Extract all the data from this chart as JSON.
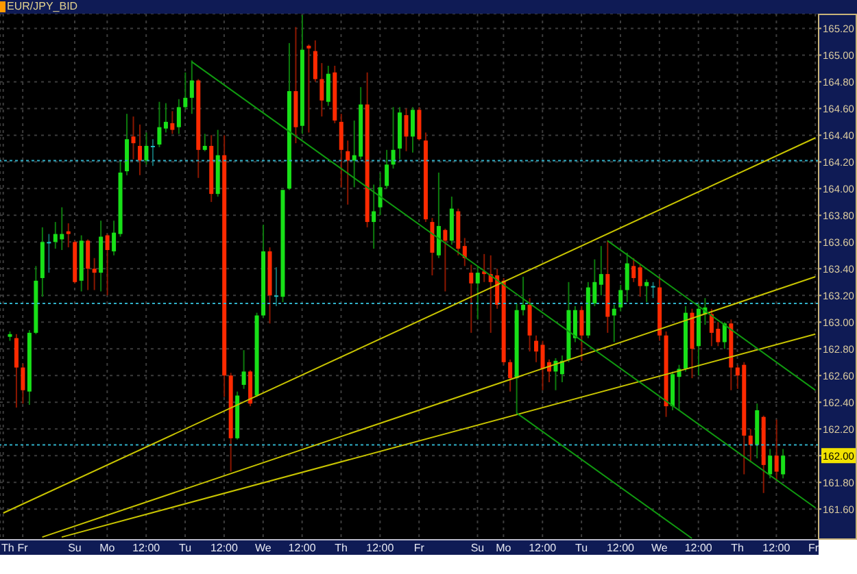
{
  "chart_data": {
    "type": "candlestick",
    "title": "EUR/JPY_BID",
    "categories": [
      "Th",
      null,
      null,
      "Fr",
      null,
      null,
      null,
      null,
      null,
      null,
      null,
      "Su",
      null,
      null,
      null,
      null,
      "Mo",
      null,
      null,
      null,
      null,
      null,
      "12:00",
      null,
      null,
      null,
      null,
      null,
      "Tu",
      null,
      null,
      null,
      null,
      null,
      "12:00",
      null,
      null,
      null,
      null,
      null,
      "We",
      null,
      null,
      null,
      null,
      null,
      "12:00",
      null,
      null,
      null,
      null,
      null,
      "Th",
      null,
      null,
      null,
      null,
      null,
      "12:00",
      null,
      null,
      null,
      null,
      null,
      "Fr",
      null,
      null,
      null,
      null,
      null,
      null,
      null,
      null,
      "Su",
      null,
      null,
      null,
      "Mo",
      null,
      null,
      null,
      null,
      null,
      "12:00",
      null,
      null,
      null,
      null,
      null,
      "Tu",
      null,
      null,
      null,
      null,
      null,
      "12:00",
      null,
      null,
      null,
      null,
      null,
      "We",
      null,
      null,
      null,
      null,
      null,
      "12:00",
      null,
      null,
      null,
      null,
      null,
      "Th",
      null,
      null,
      null,
      null,
      null,
      "12:00",
      null,
      null,
      null,
      null,
      null,
      "Fr"
    ],
    "ohlc": [
      null,
      [
        162.89,
        162.93,
        162.86,
        162.91
      ],
      [
        162.88,
        162.91,
        162.36,
        162.66
      ],
      [
        162.66,
        162.69,
        162.39,
        162.49
      ],
      [
        162.48,
        162.94,
        162.38,
        162.92
      ],
      [
        162.92,
        163.42,
        162.91,
        163.31
      ],
      [
        163.33,
        163.71,
        163.19,
        163.6
      ],
      [
        163.6,
        163.66,
        163.37,
        163.6
      ],
      [
        163.6,
        163.75,
        163.55,
        163.66
      ],
      [
        163.62,
        163.86,
        163.54,
        163.66
      ],
      [
        163.68,
        163.74,
        163.56,
        163.66
      ],
      [
        163.6,
        163.61,
        163.29,
        163.3
      ],
      [
        163.31,
        163.65,
        163.23,
        163.61
      ],
      [
        163.61,
        163.62,
        163.24,
        163.4
      ],
      [
        163.4,
        163.48,
        163.24,
        163.37
      ],
      [
        163.37,
        163.76,
        163.23,
        163.64
      ],
      [
        163.65,
        163.66,
        163.2,
        163.54
      ],
      [
        163.53,
        163.76,
        163.5,
        163.67
      ],
      [
        163.66,
        164.21,
        163.64,
        164.12
      ],
      [
        164.13,
        164.56,
        164.1,
        164.37
      ],
      [
        164.39,
        164.54,
        164.22,
        164.34
      ],
      [
        164.32,
        164.48,
        164.1,
        164.21
      ],
      [
        164.21,
        164.42,
        164.18,
        164.32
      ],
      [
        164.32,
        164.37,
        164.17,
        164.32
      ],
      [
        164.33,
        164.65,
        164.31,
        164.46
      ],
      [
        164.45,
        164.64,
        164.42,
        164.5
      ],
      [
        164.49,
        164.58,
        164.41,
        164.44
      ],
      [
        164.46,
        164.67,
        164.41,
        164.61
      ],
      [
        164.61,
        164.87,
        164.59,
        164.68
      ],
      [
        164.68,
        164.96,
        164.56,
        164.81
      ],
      [
        164.81,
        164.82,
        164.08,
        164.29
      ],
      [
        164.29,
        164.41,
        164.28,
        164.32
      ],
      [
        164.32,
        164.4,
        163.9,
        163.96
      ],
      [
        163.96,
        164.44,
        163.94,
        164.25
      ],
      [
        164.25,
        164.4,
        162.44,
        162.6
      ],
      [
        162.6,
        162.62,
        161.88,
        162.13
      ],
      [
        162.13,
        162.48,
        162.12,
        162.45
      ],
      [
        162.53,
        162.79,
        162.5,
        162.63
      ],
      [
        162.63,
        162.64,
        162.37,
        162.39
      ],
      [
        162.45,
        163.07,
        162.44,
        163.05
      ],
      [
        163.05,
        163.73,
        163.03,
        163.53
      ],
      [
        163.53,
        163.56,
        162.99,
        163.2
      ],
      [
        163.2,
        163.41,
        163.12,
        163.2
      ],
      [
        163.19,
        163.99,
        163.15,
        163.99
      ],
      [
        164.0,
        165.09,
        163.99,
        164.73
      ],
      [
        164.73,
        165.21,
        164.34,
        164.46
      ],
      [
        164.47,
        165.3,
        164.41,
        165.04
      ],
      [
        165.07,
        165.08,
        164.42,
        165.05
      ],
      [
        165.03,
        165.11,
        164.8,
        164.82
      ],
      [
        164.82,
        164.94,
        164.54,
        164.66
      ],
      [
        164.65,
        164.92,
        164.62,
        164.86
      ],
      [
        164.87,
        164.92,
        164.49,
        164.51
      ],
      [
        164.5,
        164.56,
        164.01,
        164.29
      ],
      [
        164.28,
        164.36,
        163.88,
        164.21
      ],
      [
        164.21,
        164.51,
        164.01,
        164.25
      ],
      [
        164.24,
        164.76,
        164.22,
        164.63
      ],
      [
        164.63,
        164.87,
        163.71,
        163.75
      ],
      [
        163.75,
        164.03,
        163.55,
        163.83
      ],
      [
        163.86,
        164.12,
        163.8,
        164.01
      ],
      [
        164.02,
        164.29,
        164.0,
        164.18
      ],
      [
        164.18,
        164.61,
        164.15,
        164.29
      ],
      [
        164.3,
        164.61,
        164.22,
        164.57
      ],
      [
        164.55,
        164.6,
        164.28,
        164.39
      ],
      [
        164.39,
        164.61,
        164.27,
        164.59
      ],
      [
        164.59,
        164.61,
        164.36,
        164.37
      ],
      [
        164.36,
        164.42,
        163.75,
        163.77
      ],
      [
        163.75,
        163.78,
        163.35,
        163.52
      ],
      [
        163.5,
        164.12,
        163.48,
        163.72
      ],
      [
        163.69,
        163.7,
        163.23,
        163.61
      ],
      [
        163.61,
        163.94,
        163.58,
        163.85
      ],
      [
        163.83,
        163.85,
        163.5,
        163.55
      ],
      [
        163.57,
        163.63,
        163.42,
        163.48
      ],
      [
        163.37,
        163.43,
        162.92,
        163.29
      ],
      [
        163.29,
        163.42,
        163.02,
        163.37
      ],
      [
        163.38,
        163.51,
        163.3,
        163.36
      ],
      [
        163.36,
        163.5,
        162.92,
        163.3
      ],
      [
        163.35,
        163.4,
        163.1,
        163.13
      ],
      [
        163.31,
        163.33,
        162.68,
        162.7
      ],
      [
        162.7,
        162.72,
        162.48,
        162.58
      ],
      [
        162.58,
        163.14,
        162.32,
        163.09
      ],
      [
        163.09,
        163.34,
        163.05,
        163.13
      ],
      [
        163.13,
        163.18,
        162.78,
        162.9
      ],
      [
        162.86,
        162.9,
        162.7,
        162.78
      ],
      [
        162.83,
        162.86,
        162.49,
        162.65
      ],
      [
        162.7,
        162.72,
        162.55,
        162.63
      ],
      [
        162.63,
        162.73,
        162.49,
        162.71
      ],
      [
        162.61,
        162.75,
        162.55,
        162.71
      ],
      [
        162.72,
        163.3,
        162.7,
        163.09
      ],
      [
        162.88,
        163.12,
        162.85,
        163.09
      ],
      [
        163.09,
        163.12,
        162.71,
        162.9
      ],
      [
        162.9,
        163.3,
        162.88,
        163.26
      ],
      [
        163.14,
        163.47,
        163.12,
        163.3
      ],
      [
        163.28,
        163.57,
        163.2,
        163.36
      ],
      [
        163.36,
        163.61,
        162.92,
        163.04
      ],
      [
        163.05,
        163.13,
        162.85,
        163.1
      ],
      [
        163.11,
        163.28,
        163.08,
        163.24
      ],
      [
        163.24,
        163.52,
        163.15,
        163.44
      ],
      [
        163.42,
        163.48,
        163.3,
        163.33
      ],
      [
        163.41,
        163.43,
        163.19,
        163.27
      ],
      [
        163.27,
        163.32,
        163.15,
        163.3
      ],
      [
        163.27,
        163.3,
        163.18,
        163.27
      ],
      [
        163.26,
        163.34,
        162.86,
        162.9
      ],
      [
        162.9,
        162.93,
        162.29,
        162.37
      ],
      [
        162.37,
        162.63,
        162.34,
        162.61
      ],
      [
        162.59,
        162.68,
        162.34,
        162.65
      ],
      [
        162.65,
        163.12,
        162.63,
        163.07
      ],
      [
        163.07,
        163.1,
        162.58,
        162.8
      ],
      [
        162.82,
        163.14,
        162.6,
        163.1
      ],
      [
        163.06,
        163.18,
        162.98,
        163.11
      ],
      [
        163.06,
        163.1,
        162.82,
        162.92
      ],
      [
        162.95,
        163.0,
        162.82,
        162.85
      ],
      [
        162.85,
        163.0,
        162.8,
        162.99
      ],
      [
        162.99,
        163.02,
        162.49,
        162.66
      ],
      [
        162.66,
        162.68,
        162.5,
        162.6
      ],
      [
        162.68,
        162.7,
        161.86,
        162.15
      ],
      [
        162.15,
        162.2,
        161.95,
        162.08
      ],
      [
        162.08,
        162.39,
        161.98,
        162.34
      ],
      [
        162.29,
        162.3,
        161.72,
        161.93
      ],
      [
        161.86,
        162.05,
        161.83,
        162.0
      ],
      [
        162.0,
        162.27,
        161.81,
        161.88
      ],
      [
        161.86,
        162.05,
        161.83,
        162.0
      ],
      null,
      null,
      null,
      null,
      null
    ],
    "colors": [
      null,
      "#18e018",
      "#ff2a00",
      "#ff2a00",
      "#18e018",
      "#18e018",
      "#18e018",
      "#20c0c0",
      "#18e018",
      "#18e018",
      "#ff2a00",
      "#ff2a00",
      "#18e018",
      "#ff2a00",
      "#ff2a00",
      "#18e018",
      "#ff2a00",
      "#18e018",
      "#18e018",
      "#18e018",
      "#ff2a00",
      "#ff2a00",
      "#18e018",
      "#20c0c0",
      "#18e018",
      "#18e018",
      "#ff2a00",
      "#18e018",
      "#18e018",
      "#18e018",
      "#ff2a00",
      "#18e018",
      "#ff2a00",
      "#18e018",
      "#ff2a00",
      "#ff2a00",
      "#18e018",
      "#18e018",
      "#ff2a00",
      "#18e018",
      "#18e018",
      "#ff2a00",
      "#20c0c0",
      "#18e018",
      "#18e018",
      "#ff2a00",
      "#18e018",
      "#ff2a00",
      "#ff2a00",
      "#ff2a00",
      "#18e018",
      "#ff2a00",
      "#ff2a00",
      "#ff2a00",
      "#18e018",
      "#18e018",
      "#ff2a00",
      "#18e018",
      "#18e018",
      "#18e018",
      "#18e018",
      "#18e018",
      "#ff2a00",
      "#18e018",
      "#ff2a00",
      "#ff2a00",
      "#ff2a00",
      "#18e018",
      "#ff2a00",
      "#18e018",
      "#ff2a00",
      "#ff2a00",
      "#ff2a00",
      "#18e018",
      "#ff2a00",
      "#ff2a00",
      "#ff2a00",
      "#ff2a00",
      "#ff2a00",
      "#18e018",
      "#18e018",
      "#ff2a00",
      "#ff2a00",
      "#ff2a00",
      "#ff2a00",
      "#18e018",
      "#18e018",
      "#18e018",
      "#18e018",
      "#ff2a00",
      "#18e018",
      "#18e018",
      "#18e018",
      "#ff2a00",
      "#18e018",
      "#18e018",
      "#18e018",
      "#ff2a00",
      "#ff2a00",
      "#18e018",
      "#20c0c0",
      "#ff2a00",
      "#ff2a00",
      "#18e018",
      "#18e018",
      "#18e018",
      "#ff2a00",
      "#18e018",
      "#18e018",
      "#ff2a00",
      "#ff2a00",
      "#18e018",
      "#ff2a00",
      "#ff2a00",
      "#ff2a00",
      "#ff2a00",
      "#18e018",
      "#ff2a00",
      "#18e018",
      "#ff2a00",
      "#18e018",
      null,
      null,
      null,
      null,
      null
    ],
    "series": [
      {
        "type": "line",
        "color": "#c8c400",
        "values": [
          161.57,
          null,
          null,
          null,
          null,
          null,
          null,
          null,
          null,
          null,
          null,
          null,
          null,
          null,
          null,
          null,
          null,
          null,
          null,
          null,
          null,
          null,
          null,
          null,
          null,
          null,
          null,
          null,
          null,
          null,
          null,
          null,
          null,
          null,
          null,
          null,
          null,
          null,
          null,
          null,
          null,
          null,
          null,
          null,
          null,
          null,
          null,
          null,
          null,
          null,
          null,
          null,
          null,
          null,
          null,
          null,
          null,
          null,
          null,
          null,
          null,
          null,
          null,
          null,
          null,
          null,
          null,
          null,
          null,
          null,
          null,
          null,
          null,
          null,
          null,
          null,
          null,
          null,
          null,
          null,
          null,
          null,
          null,
          null,
          null,
          null,
          null,
          null,
          null,
          null,
          null,
          null,
          null,
          null,
          null,
          null,
          null,
          null,
          null,
          null,
          null,
          null,
          null,
          null,
          null,
          null,
          null,
          null,
          null,
          null,
          null,
          null,
          null,
          null,
          null,
          null,
          null,
          null,
          null,
          null,
          null,
          null,
          null,
          null,
          null,
          164.38
        ]
      },
      {
        "type": "line",
        "color": "#c8c400",
        "values": [
          null,
          null,
          null,
          null,
          null,
          null,
          161.39,
          null,
          null,
          null,
          null,
          null,
          null,
          null,
          null,
          null,
          null,
          null,
          null,
          null,
          null,
          null,
          null,
          null,
          null,
          null,
          null,
          null,
          null,
          null,
          null,
          null,
          null,
          null,
          null,
          null,
          null,
          null,
          null,
          null,
          null,
          null,
          null,
          null,
          null,
          null,
          null,
          null,
          null,
          null,
          null,
          null,
          null,
          null,
          null,
          null,
          null,
          null,
          null,
          null,
          null,
          null,
          null,
          null,
          null,
          null,
          null,
          null,
          null,
          null,
          null,
          null,
          null,
          null,
          null,
          null,
          null,
          null,
          null,
          null,
          null,
          null,
          null,
          null,
          null,
          null,
          null,
          null,
          null,
          null,
          null,
          null,
          null,
          null,
          null,
          null,
          null,
          null,
          null,
          null,
          null,
          null,
          null,
          null,
          null,
          null,
          null,
          null,
          null,
          null,
          null,
          null,
          null,
          null,
          null,
          null,
          null,
          null,
          null,
          null,
          null,
          null,
          null,
          null,
          null,
          163.34
        ]
      },
      {
        "type": "line",
        "color": "#c8c400",
        "values": [
          null,
          null,
          null,
          null,
          null,
          null,
          null,
          null,
          null,
          161.39,
          null,
          null,
          null,
          null,
          null,
          null,
          null,
          null,
          null,
          null,
          null,
          null,
          null,
          null,
          null,
          null,
          null,
          null,
          null,
          null,
          null,
          null,
          null,
          null,
          null,
          null,
          null,
          null,
          null,
          null,
          null,
          null,
          null,
          null,
          null,
          null,
          null,
          null,
          null,
          null,
          null,
          null,
          null,
          null,
          null,
          null,
          null,
          null,
          null,
          null,
          null,
          null,
          null,
          null,
          null,
          null,
          null,
          null,
          null,
          null,
          null,
          null,
          null,
          null,
          null,
          null,
          null,
          null,
          null,
          null,
          null,
          null,
          null,
          null,
          null,
          null,
          null,
          null,
          null,
          null,
          null,
          null,
          null,
          null,
          null,
          null,
          null,
          null,
          null,
          null,
          null,
          null,
          null,
          null,
          null,
          null,
          null,
          null,
          null,
          null,
          null,
          null,
          null,
          null,
          null,
          null,
          null,
          null,
          null,
          null,
          null,
          null,
          null,
          null,
          null,
          162.91
        ]
      },
      {
        "type": "line",
        "color": "#109a10",
        "values": [
          null,
          null,
          null,
          null,
          null,
          null,
          null,
          null,
          null,
          null,
          null,
          null,
          null,
          null,
          null,
          null,
          null,
          null,
          null,
          null,
          null,
          null,
          null,
          null,
          null,
          null,
          null,
          null,
          null,
          164.95,
          null,
          null,
          null,
          null,
          null,
          null,
          null,
          null,
          null,
          null,
          null,
          null,
          null,
          null,
          null,
          null,
          null,
          null,
          null,
          null,
          null,
          null,
          null,
          null,
          null,
          null,
          null,
          null,
          null,
          null,
          null,
          null,
          null,
          null,
          null,
          null,
          null,
          null,
          null,
          null,
          null,
          null,
          null,
          null,
          null,
          null,
          null,
          null,
          null,
          null,
          null,
          null,
          null,
          null,
          null,
          null,
          null,
          null,
          null,
          null,
          null,
          null,
          null,
          null,
          null,
          null,
          null,
          null,
          null,
          null,
          null,
          null,
          null,
          null,
          null,
          null,
          null,
          null,
          null,
          null,
          null,
          null,
          null,
          null,
          null,
          null,
          null,
          null,
          null,
          null,
          null,
          null,
          null,
          null,
          null,
          161.61
        ]
      },
      {
        "type": "line",
        "color": "#109a10",
        "values": [
          null,
          null,
          null,
          null,
          null,
          null,
          null,
          null,
          null,
          null,
          null,
          null,
          null,
          null,
          null,
          null,
          null,
          null,
          null,
          null,
          null,
          null,
          null,
          null,
          null,
          null,
          null,
          null,
          null,
          null,
          null,
          null,
          null,
          null,
          null,
          null,
          null,
          null,
          null,
          null,
          null,
          null,
          null,
          null,
          null,
          null,
          null,
          null,
          null,
          null,
          null,
          null,
          null,
          null,
          null,
          null,
          null,
          null,
          null,
          null,
          null,
          null,
          null,
          null,
          null,
          null,
          null,
          null,
          null,
          null,
          null,
          null,
          null,
          null,
          null,
          null,
          null,
          null,
          null,
          null,
          null,
          null,
          null,
          null,
          null,
          null,
          null,
          null,
          null,
          null,
          null,
          null,
          null,
          163.61,
          null,
          null,
          null,
          null,
          null,
          null,
          null,
          null,
          null,
          null,
          null,
          null,
          null,
          null,
          null,
          null,
          null,
          null,
          null,
          null,
          null,
          null,
          null,
          null,
          null,
          null,
          null,
          null,
          null,
          null,
          null,
          162.49
        ]
      },
      {
        "type": "line",
        "color": "#109a10",
        "values": [
          null,
          null,
          null,
          null,
          null,
          null,
          null,
          null,
          null,
          null,
          null,
          null,
          null,
          null,
          null,
          null,
          null,
          null,
          null,
          null,
          null,
          null,
          null,
          null,
          null,
          null,
          null,
          null,
          null,
          null,
          null,
          null,
          null,
          null,
          null,
          null,
          null,
          null,
          null,
          null,
          null,
          null,
          null,
          null,
          null,
          null,
          null,
          null,
          null,
          null,
          null,
          null,
          null,
          null,
          null,
          null,
          null,
          null,
          null,
          null,
          null,
          null,
          null,
          null,
          null,
          null,
          null,
          null,
          null,
          null,
          null,
          null,
          null,
          null,
          null,
          null,
          null,
          null,
          null,
          162.32,
          null,
          null,
          null,
          null,
          null,
          null,
          null,
          null,
          null,
          null,
          null,
          null,
          null,
          null,
          null,
          null,
          null,
          null,
          null,
          null,
          null,
          null,
          null,
          null,
          null,
          null,
          161.38,
          null,
          null,
          null,
          null,
          null,
          null,
          null,
          null,
          null,
          null,
          null,
          null,
          null,
          null,
          null,
          null,
          null,
          null,
          null
        ]
      }
    ],
    "ylim": [
      161.37,
      165.31
    ],
    "yticks": [
      {
        "value": 161.6,
        "label": "161.60"
      },
      {
        "value": 161.8,
        "label": "161.80"
      },
      {
        "value": 162.0,
        "label": null
      },
      {
        "value": 162.2,
        "label": "162.20"
      },
      {
        "value": 162.4,
        "label": "162.40"
      },
      {
        "value": 162.6,
        "label": "162.60"
      },
      {
        "value": 162.8,
        "label": "162.80"
      },
      {
        "value": 163.0,
        "label": "163.00"
      },
      {
        "value": 163.2,
        "label": "163.20"
      },
      {
        "value": 163.4,
        "label": "163.40"
      },
      {
        "value": 163.6,
        "label": "163.60"
      },
      {
        "value": 163.8,
        "label": "163.80"
      },
      {
        "value": 164.0,
        "label": "164.00"
      },
      {
        "value": 164.2,
        "label": "164.20"
      },
      {
        "value": 164.4,
        "label": "164.40"
      },
      {
        "value": 164.6,
        "label": "164.60"
      },
      {
        "value": 164.8,
        "label": "164.80"
      },
      {
        "value": 165.0,
        "label": "165.00"
      },
      {
        "value": 165.2,
        "label": "165.20"
      }
    ],
    "ref_lines": [
      {
        "axis": "y",
        "value": 164.21,
        "color": "#30b0c8",
        "line_style": "dotted"
      },
      {
        "axis": "y",
        "value": 163.14,
        "color": "#30b0c8",
        "line_style": "dotted"
      },
      {
        "axis": "y",
        "value": 162.08,
        "color": "#30b0c8",
        "line_style": "dotted"
      }
    ],
    "annotations": [
      {
        "text": "162.00",
        "y": 162.0
      }
    ],
    "grid": true
  }
}
